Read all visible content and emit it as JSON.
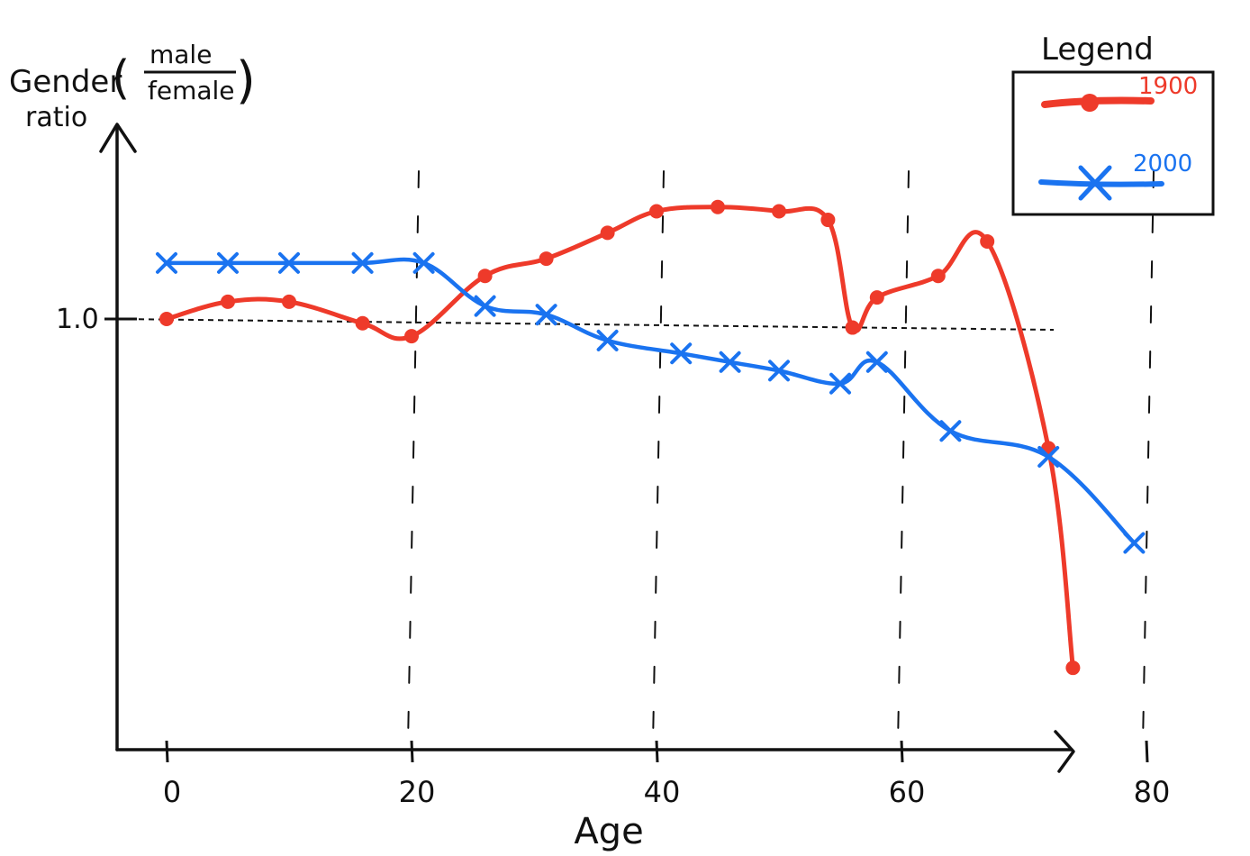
{
  "chart_data": {
    "type": "line",
    "xlabel": "Age",
    "ylabel_line1": "Gender",
    "ylabel_line2": "ratio",
    "ylabel_frac_num": "male",
    "ylabel_frac_den": "female",
    "xlim": [
      -2,
      88
    ],
    "ylim": [
      0,
      1.55
    ],
    "xticks": [
      0,
      20,
      40,
      60,
      80
    ],
    "xtick_labels": [
      "0",
      "20",
      "40",
      "60",
      "80"
    ],
    "ytick_value": 1.0,
    "ytick_label": "1.0",
    "reference_line_y": 1.0,
    "vertical_guides_x": [
      20,
      40,
      60,
      80
    ],
    "legend_title": "Legend",
    "legend_position": "top-right",
    "series": [
      {
        "name": "1900",
        "color": "#ee3a2a",
        "marker": "dot",
        "points": [
          [
            0,
            1.0
          ],
          [
            5,
            1.04
          ],
          [
            10,
            1.04
          ],
          [
            16,
            0.99
          ],
          [
            20,
            0.96
          ],
          [
            26,
            1.1
          ],
          [
            31,
            1.14
          ],
          [
            36,
            1.2
          ],
          [
            40,
            1.25
          ],
          [
            45,
            1.26
          ],
          [
            50,
            1.25
          ],
          [
            54,
            1.23
          ],
          [
            56,
            0.98
          ],
          [
            58,
            1.05
          ],
          [
            63,
            1.1
          ],
          [
            67,
            1.18
          ],
          [
            72,
            0.7
          ],
          [
            74,
            0.19
          ]
        ]
      },
      {
        "name": "2000",
        "color": "#1a73f0",
        "marker": "x",
        "points": [
          [
            0,
            1.13
          ],
          [
            5,
            1.13
          ],
          [
            10,
            1.13
          ],
          [
            16,
            1.13
          ],
          [
            21,
            1.13
          ],
          [
            26,
            1.03
          ],
          [
            31,
            1.01
          ],
          [
            36,
            0.95
          ],
          [
            42,
            0.92
          ],
          [
            46,
            0.9
          ],
          [
            50,
            0.88
          ],
          [
            55,
            0.85
          ],
          [
            58,
            0.9
          ],
          [
            64,
            0.74
          ],
          [
            72,
            0.68
          ],
          [
            79,
            0.48
          ]
        ]
      }
    ]
  }
}
